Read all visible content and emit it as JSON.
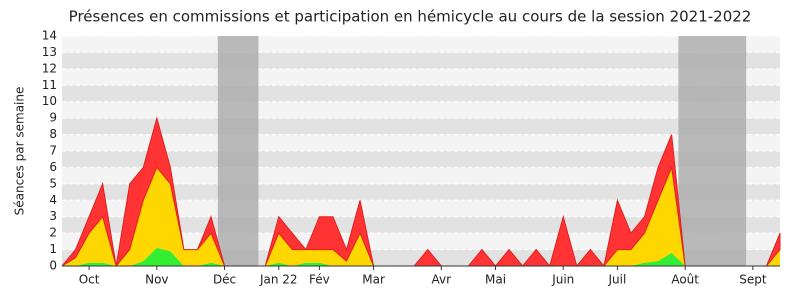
{
  "chart_data": {
    "type": "stacked_area",
    "title": "Présences en commissions et participation en hémicycle au cours de la session 2021-2022",
    "y_label": "Séances par semaine",
    "categories": [
      null,
      null,
      "Oct",
      null,
      null,
      null,
      null,
      "Nov",
      null,
      null,
      null,
      null,
      "Déc",
      null,
      null,
      null,
      "Jan 22",
      null,
      null,
      "Fév",
      null,
      null,
      null,
      "Mar",
      null,
      null,
      null,
      null,
      "Avr",
      null,
      null,
      null,
      "Mai",
      null,
      null,
      null,
      null,
      "Juin",
      null,
      null,
      null,
      "Juil",
      null,
      null,
      null,
      null,
      "Août",
      null,
      null,
      null,
      null,
      "Sept",
      null,
      null
    ],
    "series": [
      {
        "color": "#33ee33",
        "values": [
          0,
          0,
          0.2,
          0.2,
          0,
          0,
          0.3,
          1.1,
          0.9,
          0,
          0,
          0.2,
          0,
          0,
          0,
          0,
          0.2,
          0,
          0.2,
          0.2,
          0,
          0,
          0,
          0,
          0,
          0,
          0,
          0,
          0,
          0,
          0,
          0,
          0,
          0,
          0,
          0,
          0,
          0,
          0,
          0,
          0,
          0,
          0,
          0.2,
          0.3,
          0.8,
          0,
          0,
          0,
          0,
          0,
          0,
          0,
          0
        ]
      },
      {
        "color": "#ffd700",
        "values": [
          0,
          0.5,
          1.8,
          2.8,
          0,
          1,
          3.7,
          4.9,
          4.1,
          1,
          1,
          1.8,
          0,
          0,
          0,
          0,
          1.8,
          1,
          0.8,
          0.8,
          1,
          0.3,
          2,
          0,
          0,
          0,
          0,
          0,
          0,
          0,
          0,
          0,
          0,
          0,
          0,
          0,
          0,
          0,
          0,
          0,
          0,
          1,
          1,
          1.8,
          3.7,
          5.2,
          0,
          0,
          0,
          0,
          0,
          0,
          0,
          1
        ]
      },
      {
        "color": "#ff3333",
        "values": [
          0,
          0.5,
          1,
          2,
          0,
          4,
          2,
          3,
          1,
          0,
          0,
          1,
          0,
          0,
          0,
          0,
          1,
          1,
          0,
          2,
          2,
          0.7,
          2,
          0,
          0,
          0,
          0,
          1,
          0,
          0,
          0,
          1,
          0,
          1,
          0,
          1,
          0,
          3,
          0,
          1,
          0,
          3,
          1,
          1,
          2,
          2,
          0,
          0,
          0,
          0,
          0,
          0,
          0,
          1
        ]
      }
    ],
    "shaded_ranges": [
      [
        11.5,
        14.5
      ],
      [
        45.5,
        50.5
      ]
    ],
    "ylim": [
      0,
      14
    ],
    "yticks": [
      0,
      1,
      2,
      3,
      4,
      5,
      6,
      7,
      8,
      9,
      10,
      11,
      12,
      13,
      14
    ],
    "grid": true
  }
}
